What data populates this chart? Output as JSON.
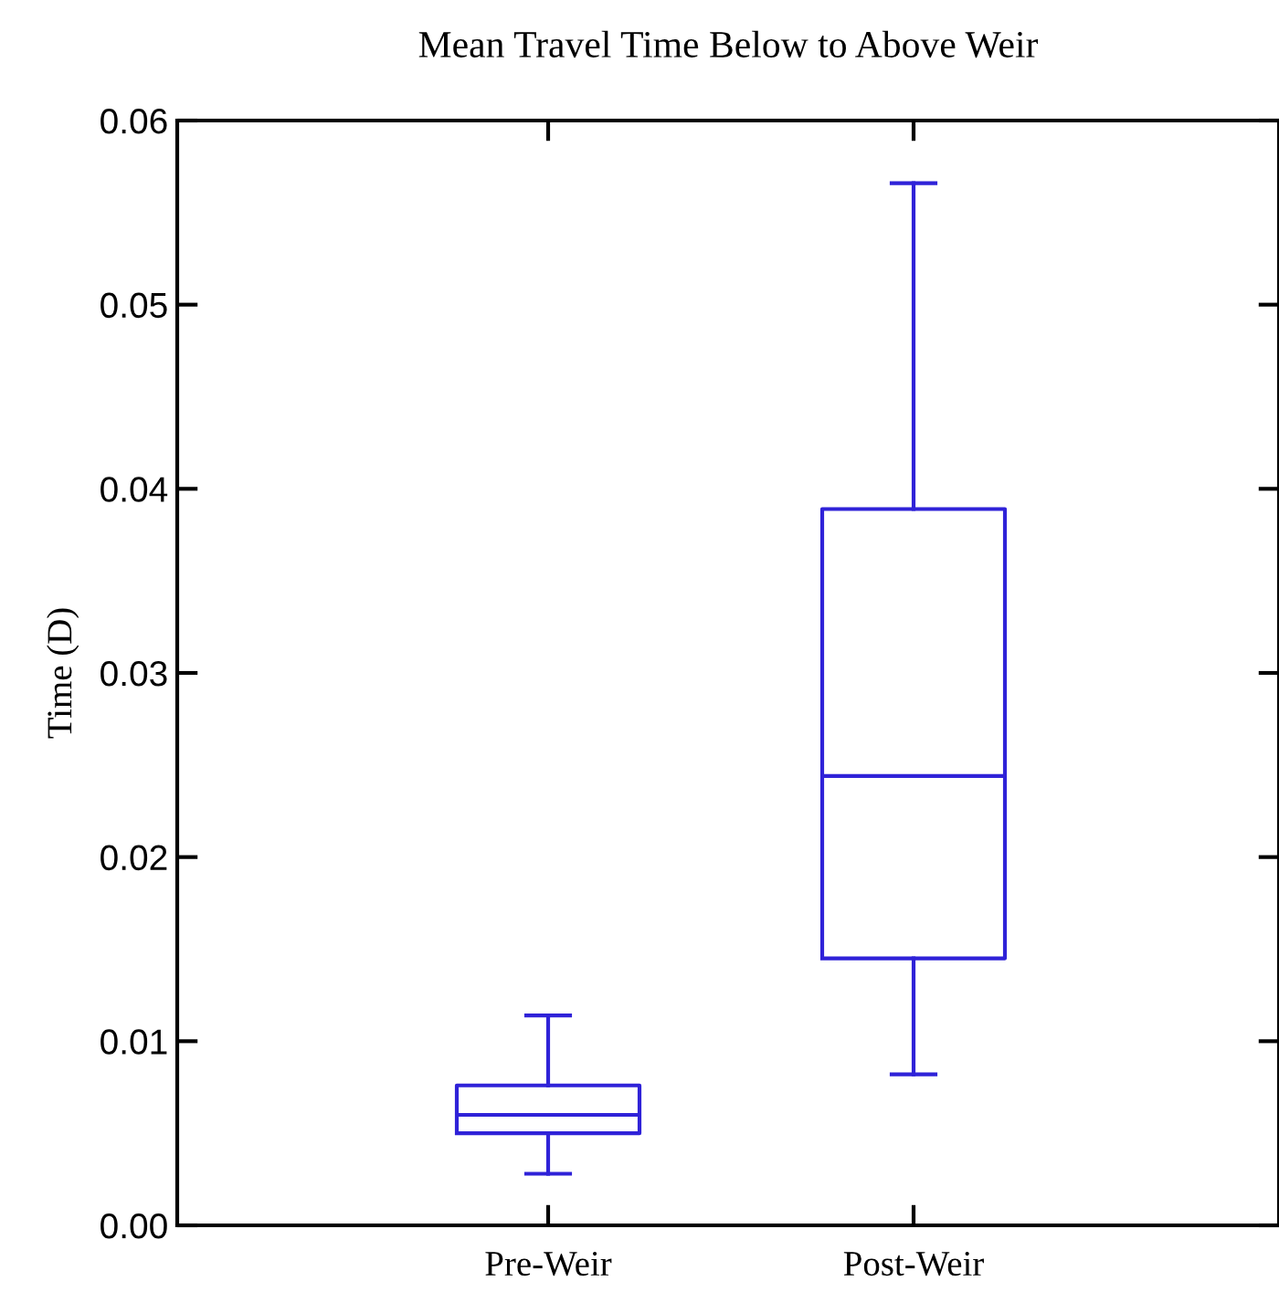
{
  "chart_data": {
    "type": "box",
    "title": "Mean Travel Time Below to Above Weir",
    "ylabel": "Time (D)",
    "categories": [
      "Pre-Weir",
      "Post-Weir"
    ],
    "boxes": [
      {
        "low": 0.0028,
        "q1": 0.005,
        "median": 0.006,
        "q3": 0.0076,
        "high": 0.0114
      },
      {
        "low": 0.0082,
        "q1": 0.0145,
        "median": 0.0244,
        "q3": 0.0389,
        "high": 0.0566
      }
    ],
    "color": "#2f22d8",
    "ylim": [
      0,
      0.06
    ],
    "yticks": [
      {
        "value": 0,
        "label": "0.00"
      },
      0.01,
      0.02,
      0.03,
      0.04,
      0.05,
      0.06
    ],
    "grid": false,
    "legend": false
  }
}
